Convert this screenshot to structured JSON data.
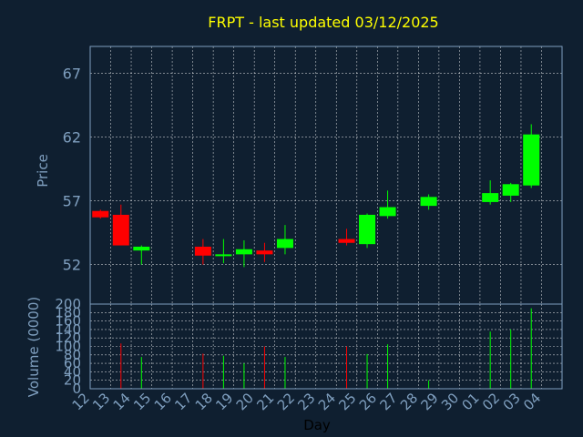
{
  "chart_data": {
    "type": "candlestick",
    "title": "FRPT - last updated 03/12/2025",
    "xlabel": "Day",
    "colors": {
      "background": "#0f1f30",
      "title": "#ffff00",
      "axis_text": "#7f9fbf",
      "axis_label": "#7f9fbf",
      "frame": "#7f9fbf",
      "grid": "#ffffff",
      "up": "#00ff00",
      "down": "#ff0000",
      "xlabel": "#000000"
    },
    "x_ticks": [
      "12",
      "13",
      "14",
      "15",
      "16",
      "17",
      "18",
      "19",
      "20",
      "21",
      "22",
      "23",
      "24",
      "25",
      "26",
      "27",
      "28",
      "29",
      "30",
      "01",
      "02",
      "03",
      "04"
    ],
    "price_panel": {
      "ylabel": "Price",
      "ylim": [
        48.9,
        69.1
      ],
      "yticks": [
        52,
        57,
        62,
        67
      ],
      "grid": true
    },
    "volume_panel": {
      "ylabel": "Volume (0000)",
      "ylim": [
        0,
        200
      ],
      "yticks": [
        0,
        20,
        40,
        60,
        80,
        100,
        120,
        140,
        160,
        180,
        200
      ],
      "grid": true
    },
    "candles": [
      {
        "day": "12",
        "open": 56.2,
        "high": 56.3,
        "low": 55.6,
        "close": 55.7,
        "volume": 0
      },
      {
        "day": "13",
        "open": 55.9,
        "high": 56.7,
        "low": 53.5,
        "close": 53.5,
        "volume": 107
      },
      {
        "day": "14",
        "open": 53.1,
        "high": 53.5,
        "low": 52.0,
        "close": 53.4,
        "volume": 75
      },
      {
        "day": "17",
        "open": 53.4,
        "high": 54.0,
        "low": 52.0,
        "close": 52.7,
        "volume": 83
      },
      {
        "day": "18",
        "open": 52.7,
        "high": 54.0,
        "low": 52.1,
        "close": 52.8,
        "volume": 78
      },
      {
        "day": "19",
        "open": 52.8,
        "high": 53.9,
        "low": 51.8,
        "close": 53.2,
        "volume": 60
      },
      {
        "day": "20",
        "open": 53.1,
        "high": 53.7,
        "low": 52.2,
        "close": 52.8,
        "volume": 100
      },
      {
        "day": "21",
        "open": 53.3,
        "high": 55.1,
        "low": 52.8,
        "close": 54.0,
        "volume": 75
      },
      {
        "day": "24",
        "open": 54.0,
        "high": 54.8,
        "low": 53.5,
        "close": 53.7,
        "volume": 100
      },
      {
        "day": "25",
        "open": 53.6,
        "high": 56.0,
        "low": 53.3,
        "close": 55.9,
        "volume": 82
      },
      {
        "day": "26",
        "open": 55.8,
        "high": 57.8,
        "low": 55.6,
        "close": 56.5,
        "volume": 105
      },
      {
        "day": "28",
        "open": 56.6,
        "high": 57.5,
        "low": 56.3,
        "close": 57.3,
        "volume": 20
      },
      {
        "day": "01",
        "open": 56.9,
        "high": 58.6,
        "low": 56.7,
        "close": 57.6,
        "volume": 135
      },
      {
        "day": "02",
        "open": 57.4,
        "high": 58.4,
        "low": 56.9,
        "close": 58.3,
        "volume": 140
      },
      {
        "day": "03",
        "open": 58.2,
        "high": 63.0,
        "low": 58.0,
        "close": 62.2,
        "volume": 190
      }
    ]
  }
}
